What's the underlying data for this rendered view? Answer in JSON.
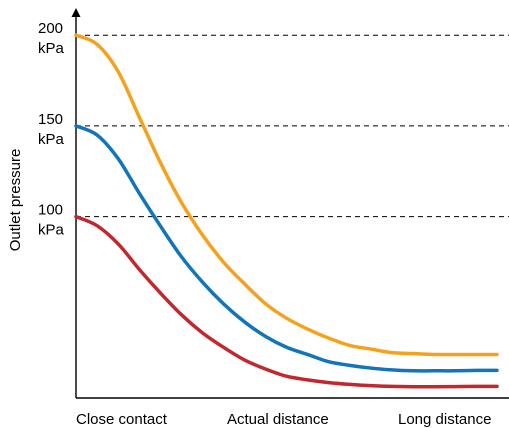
{
  "chart_data": {
    "type": "line",
    "title": "",
    "xlabel": "",
    "ylabel": "Outlet pressure",
    "x_categories": [
      "Close contact",
      "Actual distance",
      "Long distance"
    ],
    "y_ticks": [
      {
        "value": 200,
        "line1": "200",
        "line2": "kPa"
      },
      {
        "value": 150,
        "line1": "150",
        "line2": "kPa"
      },
      {
        "value": 100,
        "line1": "100",
        "line2": "kPa"
      }
    ],
    "ylim": [
      0,
      215
    ],
    "xlim": [
      0,
      1
    ],
    "grid": "dashed horizontal lines at y ticks",
    "legend": "none",
    "series": [
      {
        "color": "#f5a11c",
        "points": [
          [
            0.0,
            200
          ],
          [
            0.05,
            195
          ],
          [
            0.1,
            180
          ],
          [
            0.15,
            155
          ],
          [
            0.2,
            130
          ],
          [
            0.25,
            108
          ],
          [
            0.3,
            90
          ],
          [
            0.35,
            75
          ],
          [
            0.4,
            63
          ],
          [
            0.45,
            52
          ],
          [
            0.5,
            44
          ],
          [
            0.55,
            38
          ],
          [
            0.6,
            33
          ],
          [
            0.65,
            29
          ],
          [
            0.7,
            27
          ],
          [
            0.75,
            25
          ],
          [
            0.8,
            24.5
          ],
          [
            0.85,
            24
          ],
          [
            0.9,
            24
          ],
          [
            0.95,
            24
          ],
          [
            1.0,
            24
          ]
        ]
      },
      {
        "color": "#1274bb",
        "points": [
          [
            0.0,
            150
          ],
          [
            0.05,
            145
          ],
          [
            0.1,
            132
          ],
          [
            0.15,
            113
          ],
          [
            0.2,
            95
          ],
          [
            0.25,
            78
          ],
          [
            0.3,
            64
          ],
          [
            0.35,
            52
          ],
          [
            0.4,
            42
          ],
          [
            0.45,
            34
          ],
          [
            0.5,
            28
          ],
          [
            0.55,
            24
          ],
          [
            0.6,
            20
          ],
          [
            0.65,
            18
          ],
          [
            0.7,
            16.5
          ],
          [
            0.75,
            15.5
          ],
          [
            0.8,
            15
          ],
          [
            0.85,
            15
          ],
          [
            0.9,
            15
          ],
          [
            0.95,
            15.2
          ],
          [
            1.0,
            15.2
          ]
        ]
      },
      {
        "color": "#c1272d",
        "points": [
          [
            0.0,
            100
          ],
          [
            0.05,
            95
          ],
          [
            0.1,
            85
          ],
          [
            0.15,
            71
          ],
          [
            0.2,
            58
          ],
          [
            0.25,
            46
          ],
          [
            0.3,
            36
          ],
          [
            0.35,
            28
          ],
          [
            0.4,
            21
          ],
          [
            0.45,
            16
          ],
          [
            0.5,
            12
          ],
          [
            0.55,
            10
          ],
          [
            0.6,
            8.5
          ],
          [
            0.65,
            7.5
          ],
          [
            0.7,
            6.8
          ],
          [
            0.75,
            6.4
          ],
          [
            0.8,
            6.2
          ],
          [
            0.85,
            6.2
          ],
          [
            0.9,
            6.3
          ],
          [
            0.95,
            6.4
          ],
          [
            1.0,
            6.4
          ]
        ]
      }
    ]
  }
}
